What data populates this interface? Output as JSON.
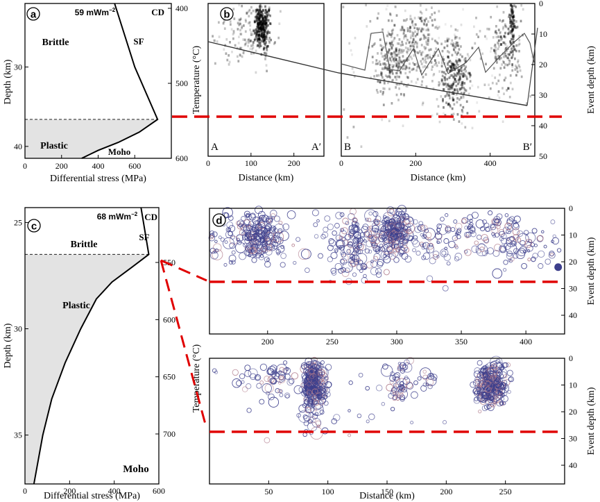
{
  "chart_data": [
    {
      "panel": "a",
      "type": "line",
      "heat_flow": "59 mWm",
      "heat_flow_exp": "−2",
      "xlabel": "Differential stress (MPa)",
      "ylabel": "Depth (km)",
      "y2label": "Temperature (°C)",
      "xlim": [
        0,
        800
      ],
      "ylim": [
        22,
        41.5
      ],
      "xticks": [
        0,
        200,
        400,
        600
      ],
      "yticks": [
        30,
        40
      ],
      "y2ticks": [
        400,
        500,
        600
      ],
      "labels": {
        "cd": "CD",
        "sf": "SF",
        "brittle": "Brittle",
        "plastic": "Plastic",
        "moho": "Moho"
      },
      "curve": [
        [
          490,
          22
        ],
        [
          600,
          30
        ],
        [
          725,
          36.6
        ],
        [
          625,
          38.2
        ],
        [
          510,
          39.5
        ],
        [
          400,
          40.5
        ],
        [
          310,
          41.5
        ]
      ],
      "transition_depth": 36.6
    },
    {
      "panel": "b",
      "type": "scatter",
      "xlabel": "Distance (km)",
      "y2label": "Event depth (km)",
      "sub1": {
        "xlim": [
          0,
          270
        ],
        "xticks": [
          0,
          100,
          200
        ],
        "start": "A",
        "end": "A′"
      },
      "sub2": {
        "xlim": [
          0,
          520
        ],
        "xticks": [
          0,
          200,
          400
        ],
        "start": "B",
        "end": "B′"
      },
      "ylim": [
        0,
        50
      ],
      "yticks": [
        0,
        10,
        20,
        30,
        40,
        50
      ],
      "dashed_depth": 37.5
    },
    {
      "panel": "c",
      "type": "line",
      "heat_flow": "68 mWm",
      "heat_flow_exp": "−2",
      "xlabel": "Differential stress (MPa)",
      "ylabel": "Depth (km)",
      "y2label": "Temperature (°C)",
      "xlim": [
        0,
        600
      ],
      "ylim": [
        24.3,
        37.3
      ],
      "xticks": [
        0,
        200,
        400,
        600
      ],
      "yticks": [
        25,
        30,
        35
      ],
      "y2ticks": [
        550,
        600,
        650,
        700
      ],
      "labels": {
        "cd": "CD",
        "sf": "SF",
        "brittle": "Brittle",
        "plastic": "Plastic",
        "moho": "Moho"
      },
      "curve": [
        [
          520,
          24.3
        ],
        [
          555,
          26.5
        ],
        [
          480,
          27.1
        ],
        [
          390,
          27.8
        ],
        [
          320,
          28.6
        ],
        [
          250,
          30
        ],
        [
          180,
          31.6
        ],
        [
          120,
          33.3
        ],
        [
          80,
          35
        ],
        [
          40,
          37.3
        ]
      ],
      "transition_depth": 26.5
    },
    {
      "panel": "d",
      "type": "scatter",
      "xlabel": "Distance (km)",
      "y2label": "Event depth (km)",
      "sub1": {
        "xlim": [
          155,
          430
        ],
        "xticks": [
          200,
          250,
          300,
          350,
          400
        ]
      },
      "sub2": {
        "xlim": [
          0,
          300
        ],
        "xticks": [
          50,
          100,
          150,
          200,
          250
        ]
      },
      "ylim": [
        0,
        47
      ],
      "yticks": [
        0,
        10,
        20,
        30,
        40
      ],
      "dashed_depth": 27.5
    }
  ]
}
